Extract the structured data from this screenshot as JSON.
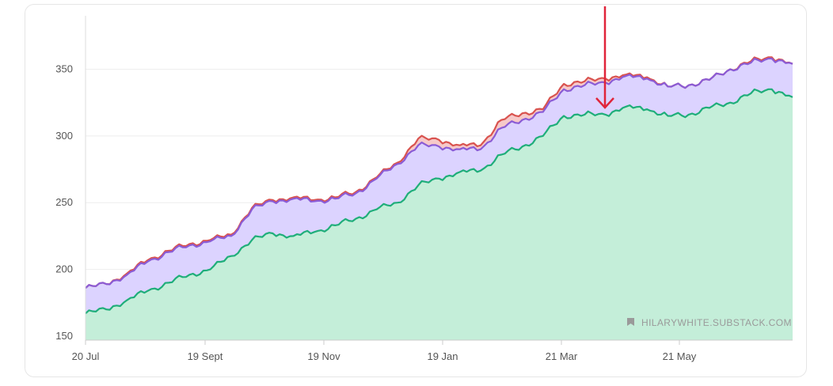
{
  "watermark": "HILARYWHITE.SUBSTACK.COM",
  "chart_data": {
    "type": "area",
    "title": "",
    "xlabel": "",
    "ylabel": "",
    "ylim": [
      147,
      390
    ],
    "yticks": [
      150,
      200,
      250,
      300,
      350
    ],
    "xticks": [
      "20 Jul",
      "19 Sept",
      "19 Nov",
      "19 Jan",
      "21 Mar",
      "21 May"
    ],
    "x_range": [
      "20 Jul",
      "29 Jun"
    ],
    "grid": true,
    "legend": "none",
    "annotation": "red arrow pointing down near 10 Apr",
    "x": [
      "20 Jul",
      "30 Jul",
      "9 Aug",
      "19 Aug",
      "29 Aug",
      "8 Sept",
      "19 Sept",
      "29 Sept",
      "9 Oct",
      "19 Oct",
      "29 Oct",
      "8 Nov",
      "19 Nov",
      "29 Nov",
      "9 Dec",
      "19 Dec",
      "29 Dec",
      "8 Jan",
      "19 Jan",
      "29 Jan",
      "8 Feb",
      "18 Feb",
      "28 Feb",
      "10 Mar",
      "21 Mar",
      "31 Mar",
      "10 Apr",
      "20 Apr",
      "30 Apr",
      "10 May",
      "21 May",
      "31 May",
      "10 Jun",
      "20 Jun",
      "29 Jun"
    ],
    "series": [
      {
        "color": "#d9534f",
        "values": [
          186,
          189,
          197,
          207,
          214,
          219,
          222,
          226,
          246,
          252,
          254,
          252,
          254,
          258,
          269,
          280,
          298,
          297,
          293,
          293,
          312,
          317,
          320,
          339,
          341,
          343,
          346,
          344,
          337,
          338,
          342,
          350,
          356,
          359,
          354
        ]
      },
      {
        "color": "#8a5cd6",
        "values": [
          186,
          189,
          196,
          206,
          213,
          218,
          221,
          225,
          245,
          251,
          253,
          251,
          253,
          257,
          268,
          279,
          293,
          292,
          290,
          290,
          306,
          312,
          318,
          335,
          338,
          340,
          345,
          343,
          337,
          338,
          342,
          350,
          355,
          358,
          354
        ]
      },
      {
        "color": "#1fae7a",
        "values": [
          167,
          170,
          177,
          184,
          190,
          196,
          200,
          210,
          222,
          227,
          225,
          228,
          233,
          238,
          245,
          250,
          263,
          268,
          273,
          274,
          286,
          292,
          300,
          315,
          316,
          316,
          322,
          320,
          315,
          316,
          321,
          325,
          332,
          335,
          329
        ]
      }
    ]
  }
}
